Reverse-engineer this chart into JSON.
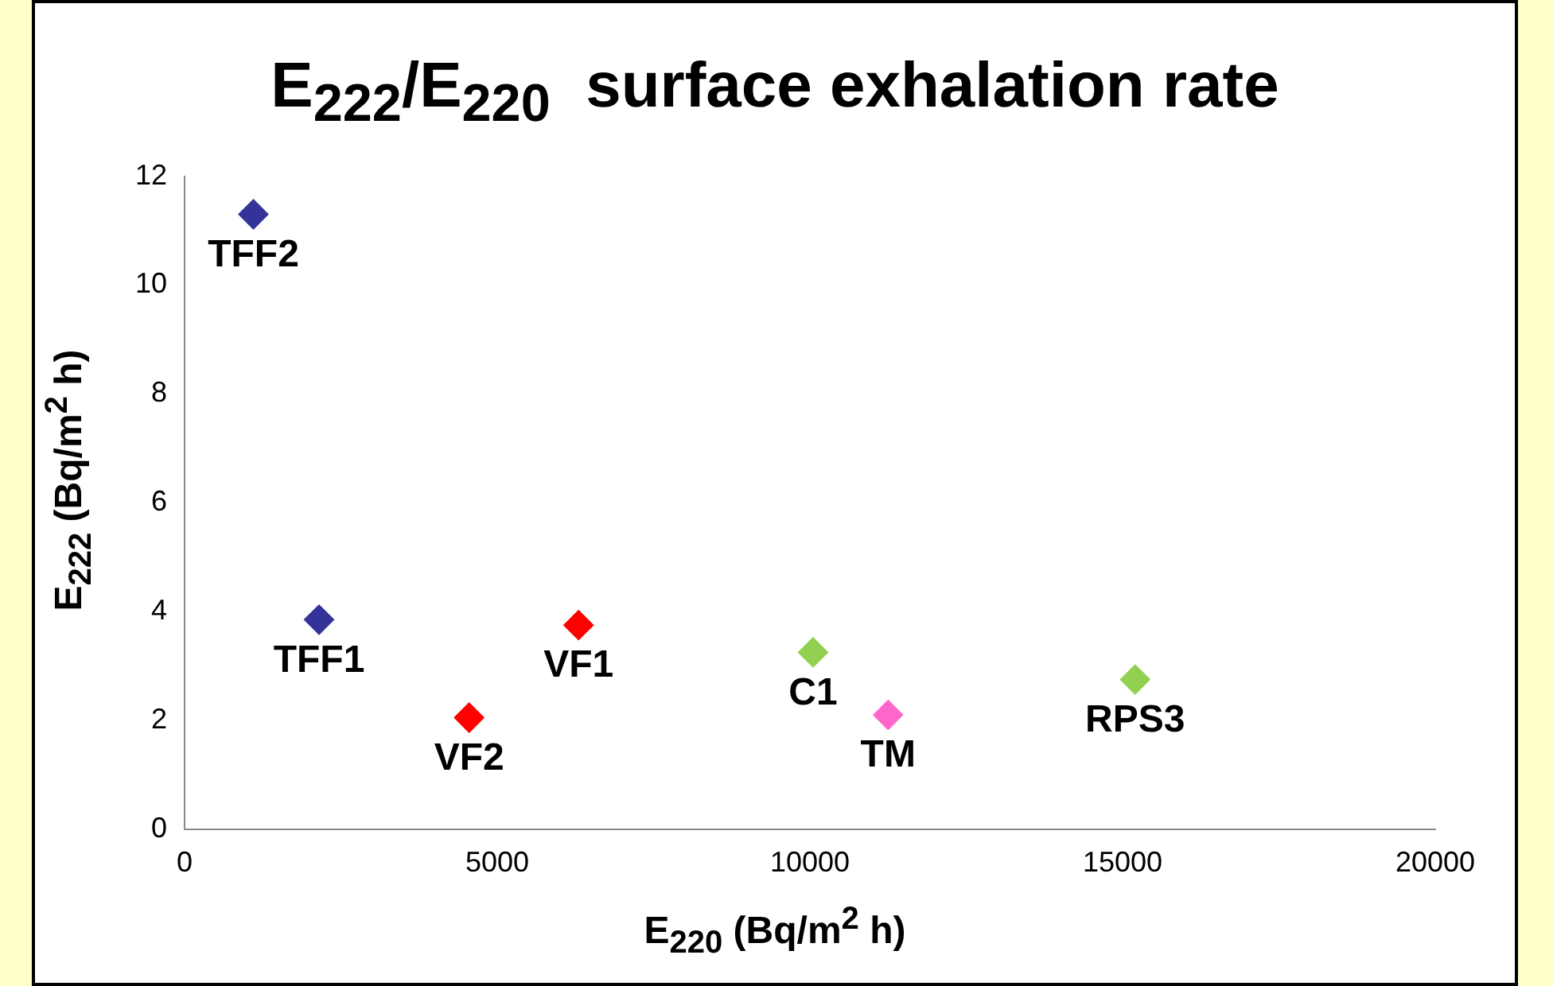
{
  "chart_data": {
    "type": "scatter",
    "title": "E$_{222}$/E$_{220}$  surface exhalation rate",
    "xlabel": "E$_{220}$ (Bq/m$^{2}$ h)",
    "ylabel": "E$_{222}$ (Bq/m$^{2}$ h)",
    "marker": "diamond",
    "xlim": [
      0,
      20000
    ],
    "xticks": [
      0,
      5000,
      10000,
      15000,
      20000
    ],
    "ylim": [
      0,
      12
    ],
    "yticks": [
      0,
      2,
      4,
      6,
      8,
      10,
      12
    ],
    "legend": false,
    "series": [
      {
        "name": "TFF2",
        "color": "#333399",
        "x": [
          1100
        ],
        "values": [
          11.3
        ]
      },
      {
        "name": "TFF1",
        "color": "#333399",
        "x": [
          2150
        ],
        "values": [
          3.85
        ]
      },
      {
        "name": "VF2",
        "color": "#ff0000",
        "x": [
          4550
        ],
        "values": [
          2.05
        ]
      },
      {
        "name": "VF1",
        "color": "#ff0000",
        "x": [
          6300
        ],
        "values": [
          3.75
        ]
      },
      {
        "name": "C1",
        "color": "#92d050",
        "x": [
          10050
        ],
        "values": [
          3.25
        ]
      },
      {
        "name": "TM",
        "color": "#ff66cc",
        "x": [
          11250
        ],
        "values": [
          2.1
        ]
      },
      {
        "name": "RPS3",
        "color": "#92d050",
        "x": [
          15200
        ],
        "values": [
          2.75
        ]
      }
    ]
  }
}
